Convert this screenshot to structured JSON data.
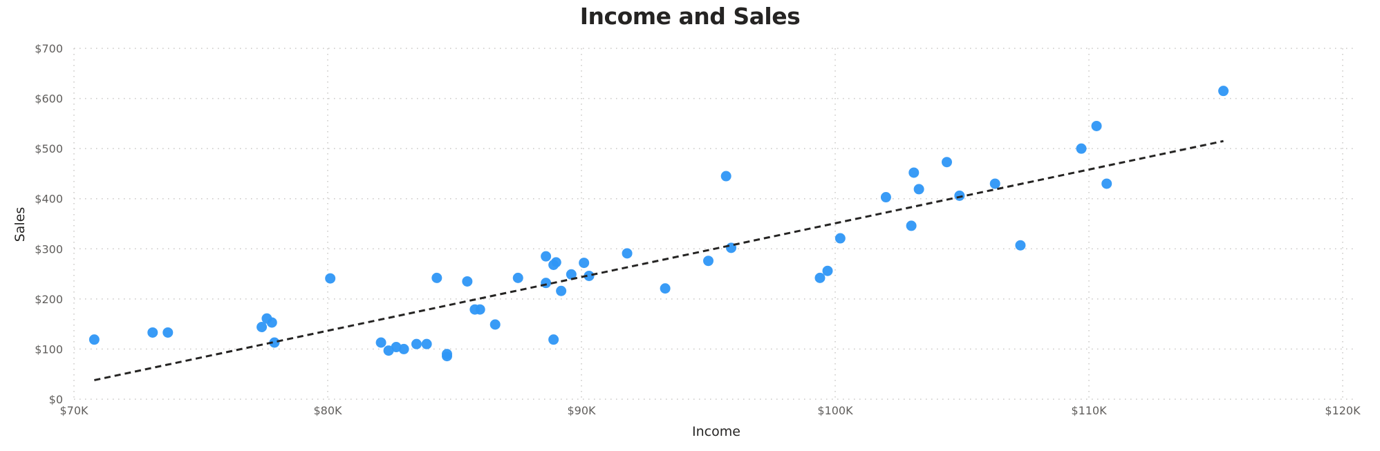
{
  "chart": {
    "title": "Income and Sales",
    "xlabel": "Income",
    "ylabel": "Sales"
  },
  "colors": {
    "point": "#2e96f5",
    "trendline": "#252423",
    "grid": "#c8c6c4",
    "tick_text": "#605e5c",
    "title_text": "#252423"
  },
  "chart_data": {
    "type": "scatter",
    "title": "Income and Sales",
    "xlabel": "Income",
    "ylabel": "Sales",
    "xlim": [
      70000,
      120000
    ],
    "ylim": [
      0,
      700
    ],
    "x_ticks": [
      "$70K",
      "$80K",
      "$90K",
      "$100K",
      "$110K",
      "$120K"
    ],
    "y_ticks": [
      "$0",
      "$100",
      "$200",
      "$300",
      "$400",
      "$500",
      "$600",
      "$700"
    ],
    "grid": true,
    "grid_style": "dotted",
    "legend": "none",
    "trendline": {
      "style": "dashed",
      "x": [
        70800,
        115300
      ],
      "y": [
        38,
        515
      ]
    },
    "series": [
      {
        "name": "Sales",
        "points": [
          {
            "x": 70800,
            "y": 119
          },
          {
            "x": 73100,
            "y": 133
          },
          {
            "x": 73700,
            "y": 133
          },
          {
            "x": 77400,
            "y": 144
          },
          {
            "x": 77600,
            "y": 161
          },
          {
            "x": 77800,
            "y": 153
          },
          {
            "x": 77900,
            "y": 113
          },
          {
            "x": 80100,
            "y": 241
          },
          {
            "x": 82100,
            "y": 113
          },
          {
            "x": 82400,
            "y": 97
          },
          {
            "x": 82700,
            "y": 104
          },
          {
            "x": 83000,
            "y": 100
          },
          {
            "x": 83500,
            "y": 110
          },
          {
            "x": 83900,
            "y": 110
          },
          {
            "x": 84300,
            "y": 242
          },
          {
            "x": 84700,
            "y": 90
          },
          {
            "x": 84700,
            "y": 86
          },
          {
            "x": 85500,
            "y": 235
          },
          {
            "x": 85800,
            "y": 179
          },
          {
            "x": 86000,
            "y": 179
          },
          {
            "x": 86600,
            "y": 149
          },
          {
            "x": 87500,
            "y": 242
          },
          {
            "x": 88600,
            "y": 232
          },
          {
            "x": 88600,
            "y": 285
          },
          {
            "x": 88900,
            "y": 268
          },
          {
            "x": 89000,
            "y": 273
          },
          {
            "x": 88900,
            "y": 119
          },
          {
            "x": 89200,
            "y": 216
          },
          {
            "x": 89600,
            "y": 249
          },
          {
            "x": 90100,
            "y": 272
          },
          {
            "x": 90300,
            "y": 246
          },
          {
            "x": 91800,
            "y": 291
          },
          {
            "x": 93300,
            "y": 221
          },
          {
            "x": 95000,
            "y": 276
          },
          {
            "x": 95700,
            "y": 445
          },
          {
            "x": 95900,
            "y": 302
          },
          {
            "x": 99400,
            "y": 242
          },
          {
            "x": 99700,
            "y": 256
          },
          {
            "x": 100200,
            "y": 321
          },
          {
            "x": 102000,
            "y": 403
          },
          {
            "x": 103000,
            "y": 346
          },
          {
            "x": 103100,
            "y": 452
          },
          {
            "x": 103300,
            "y": 419
          },
          {
            "x": 104400,
            "y": 473
          },
          {
            "x": 104900,
            "y": 406
          },
          {
            "x": 106300,
            "y": 430
          },
          {
            "x": 107300,
            "y": 307
          },
          {
            "x": 109700,
            "y": 500
          },
          {
            "x": 110300,
            "y": 545
          },
          {
            "x": 110700,
            "y": 430
          },
          {
            "x": 115300,
            "y": 615
          }
        ]
      }
    ]
  }
}
